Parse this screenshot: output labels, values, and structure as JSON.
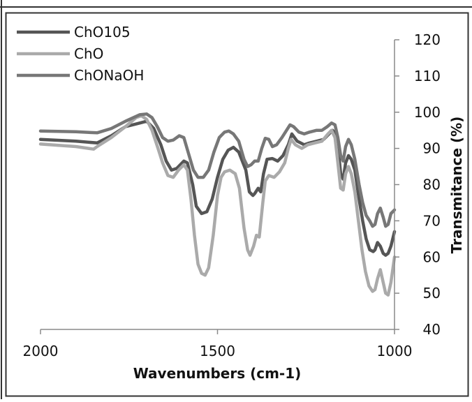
{
  "chart_data": {
    "type": "line",
    "title": "",
    "xlabel": "Wavenumbers (cm-1)",
    "ylabel": "Transmitance (%)",
    "xlim": [
      2000,
      1000
    ],
    "ylim": [
      40,
      120
    ],
    "x_reversed": true,
    "y_axis_side": "right",
    "grid": false,
    "legend": "top-left",
    "xticks": [
      2000,
      1500,
      1000
    ],
    "yticks": [
      40,
      50,
      60,
      70,
      80,
      90,
      100,
      110,
      120
    ],
    "xtick_labels": [
      "2000",
      "1500",
      "1000"
    ],
    "ytick_labels": [
      "40",
      "50",
      "60",
      "70",
      "80",
      "90",
      "100",
      "110",
      "120"
    ],
    "series": [
      {
        "name": "ChO105",
        "color": "#555555",
        "points": [
          [
            2000,
            92.5
          ],
          [
            1900,
            92
          ],
          [
            1840,
            91.5
          ],
          [
            1800,
            93.5
          ],
          [
            1760,
            96
          ],
          [
            1720,
            97
          ],
          [
            1700,
            97.5
          ],
          [
            1680,
            95.5
          ],
          [
            1660,
            91
          ],
          [
            1645,
            86.5
          ],
          [
            1630,
            84
          ],
          [
            1615,
            84.5
          ],
          [
            1595,
            86.5
          ],
          [
            1585,
            86
          ],
          [
            1570,
            80
          ],
          [
            1560,
            74
          ],
          [
            1545,
            72
          ],
          [
            1530,
            72.5
          ],
          [
            1515,
            76
          ],
          [
            1500,
            82
          ],
          [
            1485,
            87
          ],
          [
            1470,
            89.5
          ],
          [
            1455,
            90.3
          ],
          [
            1440,
            89
          ],
          [
            1420,
            84
          ],
          [
            1410,
            78
          ],
          [
            1400,
            77
          ],
          [
            1395,
            77.5
          ],
          [
            1385,
            79
          ],
          [
            1378,
            78
          ],
          [
            1370,
            83
          ],
          [
            1360,
            87
          ],
          [
            1345,
            87.2
          ],
          [
            1330,
            86.5
          ],
          [
            1315,
            88
          ],
          [
            1300,
            91
          ],
          [
            1290,
            94
          ],
          [
            1275,
            92
          ],
          [
            1255,
            91
          ],
          [
            1240,
            91.5
          ],
          [
            1220,
            92
          ],
          [
            1200,
            92.5
          ],
          [
            1185,
            94
          ],
          [
            1175,
            95
          ],
          [
            1165,
            94
          ],
          [
            1158,
            89
          ],
          [
            1152,
            83
          ],
          [
            1145,
            81.5
          ],
          [
            1138,
            86
          ],
          [
            1130,
            88
          ],
          [
            1122,
            87
          ],
          [
            1112,
            84
          ],
          [
            1100,
            76
          ],
          [
            1090,
            70
          ],
          [
            1080,
            65
          ],
          [
            1070,
            62
          ],
          [
            1060,
            61.5
          ],
          [
            1055,
            62
          ],
          [
            1048,
            64
          ],
          [
            1040,
            63
          ],
          [
            1032,
            61
          ],
          [
            1025,
            60.5
          ],
          [
            1018,
            61
          ],
          [
            1010,
            63
          ],
          [
            1000,
            67
          ]
        ]
      },
      {
        "name": "ChO",
        "color": "#aaaaaa",
        "points": [
          [
            2000,
            91.2
          ],
          [
            1900,
            90.5
          ],
          [
            1850,
            89.8
          ],
          [
            1840,
            90.5
          ],
          [
            1800,
            93
          ],
          [
            1760,
            96
          ],
          [
            1730,
            98.5
          ],
          [
            1715,
            99
          ],
          [
            1700,
            98
          ],
          [
            1685,
            95
          ],
          [
            1668,
            90
          ],
          [
            1655,
            86
          ],
          [
            1640,
            82.5
          ],
          [
            1625,
            82
          ],
          [
            1610,
            84
          ],
          [
            1595,
            85.5
          ],
          [
            1585,
            84
          ],
          [
            1575,
            76
          ],
          [
            1565,
            66
          ],
          [
            1555,
            58
          ],
          [
            1545,
            55.5
          ],
          [
            1535,
            55
          ],
          [
            1525,
            57
          ],
          [
            1512,
            66
          ],
          [
            1500,
            77
          ],
          [
            1490,
            82
          ],
          [
            1480,
            83.5
          ],
          [
            1465,
            84
          ],
          [
            1450,
            83
          ],
          [
            1438,
            79
          ],
          [
            1425,
            68
          ],
          [
            1415,
            62
          ],
          [
            1408,
            60.5
          ],
          [
            1398,
            63
          ],
          [
            1390,
            66
          ],
          [
            1382,
            65.5
          ],
          [
            1372,
            75
          ],
          [
            1365,
            81
          ],
          [
            1355,
            82.5
          ],
          [
            1340,
            82
          ],
          [
            1325,
            83.5
          ],
          [
            1310,
            86
          ],
          [
            1300,
            90
          ],
          [
            1292,
            92.5
          ],
          [
            1280,
            91
          ],
          [
            1262,
            90
          ],
          [
            1245,
            91
          ],
          [
            1225,
            91.5
          ],
          [
            1205,
            92
          ],
          [
            1188,
            94
          ],
          [
            1178,
            95
          ],
          [
            1168,
            93
          ],
          [
            1160,
            86
          ],
          [
            1152,
            79
          ],
          [
            1145,
            78.5
          ],
          [
            1138,
            83
          ],
          [
            1130,
            85
          ],
          [
            1122,
            83
          ],
          [
            1112,
            78
          ],
          [
            1102,
            70
          ],
          [
            1092,
            62
          ],
          [
            1082,
            56
          ],
          [
            1072,
            52
          ],
          [
            1062,
            50.5
          ],
          [
            1055,
            51
          ],
          [
            1048,
            54
          ],
          [
            1040,
            56.5
          ],
          [
            1032,
            53
          ],
          [
            1025,
            50
          ],
          [
            1018,
            49.5
          ],
          [
            1010,
            53
          ],
          [
            1000,
            60
          ]
        ]
      },
      {
        "name": "ChONaOH",
        "color": "#777777",
        "points": [
          [
            2000,
            94.8
          ],
          [
            1900,
            94.6
          ],
          [
            1840,
            94.3
          ],
          [
            1800,
            95.5
          ],
          [
            1760,
            97.5
          ],
          [
            1720,
            99.3
          ],
          [
            1700,
            99.5
          ],
          [
            1685,
            98.5
          ],
          [
            1670,
            96
          ],
          [
            1655,
            93
          ],
          [
            1640,
            92
          ],
          [
            1625,
            92.3
          ],
          [
            1608,
            93.5
          ],
          [
            1595,
            93
          ],
          [
            1580,
            88
          ],
          [
            1568,
            84
          ],
          [
            1555,
            82
          ],
          [
            1540,
            82
          ],
          [
            1525,
            84
          ],
          [
            1510,
            89
          ],
          [
            1495,
            93
          ],
          [
            1480,
            94.5
          ],
          [
            1468,
            94.8
          ],
          [
            1455,
            94
          ],
          [
            1440,
            92
          ],
          [
            1425,
            87
          ],
          [
            1415,
            85
          ],
          [
            1405,
            85.5
          ],
          [
            1395,
            86.5
          ],
          [
            1385,
            86.5
          ],
          [
            1375,
            90
          ],
          [
            1365,
            92.8
          ],
          [
            1355,
            92.5
          ],
          [
            1345,
            90.5
          ],
          [
            1333,
            91
          ],
          [
            1318,
            93
          ],
          [
            1305,
            95
          ],
          [
            1295,
            96.5
          ],
          [
            1285,
            96
          ],
          [
            1270,
            94.5
          ],
          [
            1255,
            94
          ],
          [
            1240,
            94.5
          ],
          [
            1220,
            95
          ],
          [
            1205,
            95
          ],
          [
            1190,
            96
          ],
          [
            1178,
            97
          ],
          [
            1168,
            96.5
          ],
          [
            1160,
            93
          ],
          [
            1152,
            88
          ],
          [
            1145,
            86.5
          ],
          [
            1138,
            90.5
          ],
          [
            1130,
            92.5
          ],
          [
            1122,
            91
          ],
          [
            1112,
            87
          ],
          [
            1100,
            80
          ],
          [
            1090,
            75
          ],
          [
            1080,
            71.5
          ],
          [
            1070,
            70
          ],
          [
            1062,
            68.5
          ],
          [
            1055,
            69
          ],
          [
            1048,
            72
          ],
          [
            1040,
            73.5
          ],
          [
            1032,
            71
          ],
          [
            1025,
            68.5
          ],
          [
            1018,
            69
          ],
          [
            1010,
            72
          ],
          [
            1000,
            73
          ]
        ]
      }
    ]
  }
}
